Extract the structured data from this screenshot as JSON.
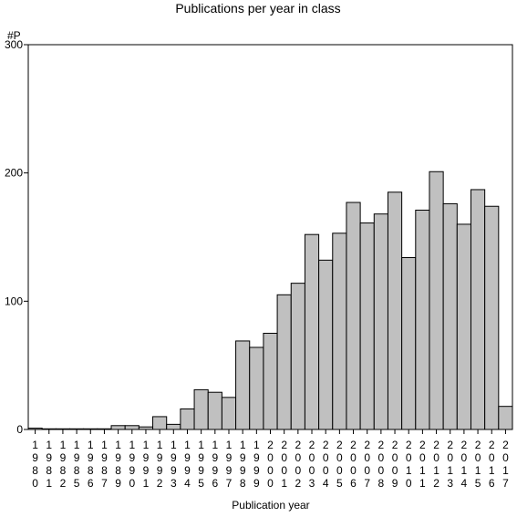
{
  "chart_data": {
    "type": "bar",
    "title": "Publications per year in class",
    "ylabel": "#P",
    "xlabel": "Publication year",
    "ylim": [
      0,
      300
    ],
    "yticks": [
      0,
      100,
      200,
      300
    ],
    "grid": false,
    "legend": "none",
    "bar_color": "#c0c0c0",
    "categories": [
      "1980",
      "1981",
      "1982",
      "1985",
      "1986",
      "1987",
      "1989",
      "1990",
      "1991",
      "1992",
      "1993",
      "1994",
      "1995",
      "1996",
      "1997",
      "1998",
      "1999",
      "2000",
      "2001",
      "2002",
      "2003",
      "2004",
      "2005",
      "2006",
      "2007",
      "2008",
      "2009",
      "2010",
      "2011",
      "2012",
      "2013",
      "2014",
      "2015",
      "2016",
      "2017"
    ],
    "values": [
      1,
      0.5,
      0.5,
      0.5,
      0.5,
      0.5,
      3,
      3,
      2,
      10,
      4,
      16,
      31,
      29,
      25,
      69,
      64,
      75,
      105,
      114,
      152,
      132,
      153,
      177,
      161,
      168,
      185,
      134,
      171,
      201,
      176,
      160,
      187,
      174,
      18
    ]
  }
}
